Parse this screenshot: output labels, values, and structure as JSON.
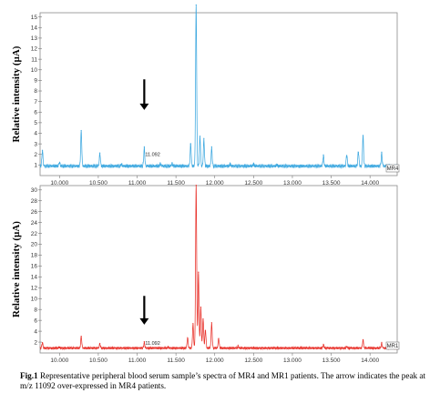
{
  "chart_data": [
    {
      "type": "line",
      "ylabel": "Relative intensity (µA)",
      "series": [
        {
          "name": "MR4",
          "color": "#3fa9e0"
        }
      ],
      "xlim": [
        9750,
        14350
      ],
      "ylim": [
        0,
        15.4
      ],
      "xticks": [
        10000,
        10500,
        11000,
        11500,
        12000,
        12500,
        13000,
        13500,
        14000
      ],
      "xtick_labels": [
        "10.000",
        "10.500",
        "11.000",
        "11.500",
        "12.000",
        "12.500",
        "13.000",
        "13.500",
        "14.000"
      ],
      "yticks": [
        1,
        2,
        3,
        4,
        5,
        6,
        7,
        8,
        9,
        10,
        11,
        12,
        13,
        14,
        15
      ],
      "annotation": {
        "text": "11.092",
        "x": 11092,
        "y": 1.75
      },
      "arrow": {
        "x": 11092,
        "y_from": 9.1,
        "y_to": 6.2
      },
      "baseline": 0.9,
      "noise_amplitude": 0.2,
      "peaks": [
        {
          "x": 9780,
          "y": 1.6
        },
        {
          "x": 10000,
          "y": 0.5
        },
        {
          "x": 10280,
          "y": 3.4
        },
        {
          "x": 10520,
          "y": 1.3
        },
        {
          "x": 10800,
          "y": 0.3
        },
        {
          "x": 11092,
          "y": 1.8
        },
        {
          "x": 11300,
          "y": 0.35
        },
        {
          "x": 11450,
          "y": 0.35
        },
        {
          "x": 11690,
          "y": 2.2
        },
        {
          "x": 11760,
          "y": 15.3
        },
        {
          "x": 11810,
          "y": 2.9
        },
        {
          "x": 11860,
          "y": 2.6
        },
        {
          "x": 11960,
          "y": 1.8
        },
        {
          "x": 12200,
          "y": 0.3
        },
        {
          "x": 12500,
          "y": 0.3
        },
        {
          "x": 12800,
          "y": 0.25
        },
        {
          "x": 13400,
          "y": 1.1
        },
        {
          "x": 13700,
          "y": 1.2
        },
        {
          "x": 13850,
          "y": 1.5
        },
        {
          "x": 13910,
          "y": 3.0
        },
        {
          "x": 14150,
          "y": 1.3
        }
      ]
    },
    {
      "type": "line",
      "ylabel": "Relative intensity (µA)",
      "series": [
        {
          "name": "MR1",
          "color": "#e8322b"
        }
      ],
      "xlim": [
        9750,
        14350
      ],
      "ylim": [
        0,
        30.8
      ],
      "xticks": [
        10000,
        10500,
        11000,
        11500,
        12000,
        12500,
        13000,
        13500,
        14000
      ],
      "xtick_labels": [
        "10.000",
        "10.500",
        "11.000",
        "11.500",
        "12.000",
        "12.500",
        "13.000",
        "13.500",
        "14.000"
      ],
      "yticks": [
        2,
        4,
        6,
        8,
        10,
        12,
        14,
        16,
        18,
        20,
        22,
        24,
        26,
        28,
        30
      ],
      "annotation": {
        "text": "11.092",
        "x": 11092,
        "y": 1.3
      },
      "arrow": {
        "x": 11092,
        "y_from": 10.5,
        "y_to": 5.2
      },
      "baseline": 0.9,
      "noise_amplitude": 0.25,
      "peaks": [
        {
          "x": 9780,
          "y": 1.1
        },
        {
          "x": 10000,
          "y": 0.3
        },
        {
          "x": 10280,
          "y": 2.2
        },
        {
          "x": 10520,
          "y": 0.9
        },
        {
          "x": 11092,
          "y": 1.1
        },
        {
          "x": 11400,
          "y": 0.3
        },
        {
          "x": 11650,
          "y": 2.0
        },
        {
          "x": 11720,
          "y": 4.5
        },
        {
          "x": 11760,
          "y": 30.0
        },
        {
          "x": 11790,
          "y": 14.0
        },
        {
          "x": 11820,
          "y": 7.6
        },
        {
          "x": 11850,
          "y": 5.6
        },
        {
          "x": 11880,
          "y": 3.5
        },
        {
          "x": 11960,
          "y": 4.6
        },
        {
          "x": 12050,
          "y": 1.9
        },
        {
          "x": 12300,
          "y": 0.4
        },
        {
          "x": 13400,
          "y": 0.7
        },
        {
          "x": 13700,
          "y": 0.4
        },
        {
          "x": 13910,
          "y": 1.6
        },
        {
          "x": 14150,
          "y": 1.0
        }
      ]
    }
  ],
  "caption": {
    "label": "Fig.1",
    "text": " Representative peripheral blood serum sample’s spectra of MR4 and MR1 patients. The arrow indicates the peak at m/z 11092 over-expressed in MR4 patients."
  }
}
